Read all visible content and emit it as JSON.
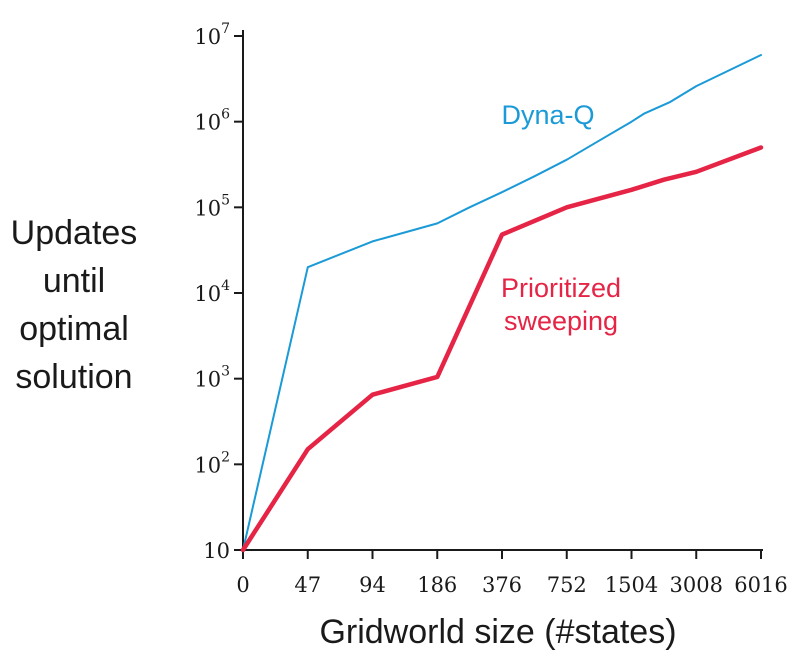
{
  "chart_data": {
    "type": "line",
    "xlabel": "Gridworld size (#states)",
    "ylabel_lines": [
      "Updates",
      "until",
      "optimal",
      "solution"
    ],
    "yscale": "log",
    "ylim": [
      10,
      10000000
    ],
    "x_categories": [
      "0",
      "47",
      "94",
      "186",
      "376",
      "752",
      "1504",
      "3008",
      "6016"
    ],
    "y_ticks": [
      {
        "value": 10,
        "base": "10",
        "exp": ""
      },
      {
        "value": 100,
        "base": "10",
        "exp": "2"
      },
      {
        "value": 1000,
        "base": "10",
        "exp": "3"
      },
      {
        "value": 10000,
        "base": "10",
        "exp": "4"
      },
      {
        "value": 100000,
        "base": "10",
        "exp": "5"
      },
      {
        "value": 1000000,
        "base": "10",
        "exp": "6"
      },
      {
        "value": 10000000,
        "base": "10",
        "exp": "7"
      }
    ],
    "grid": false,
    "series": [
      {
        "name": "Dyna-Q",
        "color": "#1a9ad6",
        "points": [
          [
            0,
            10
          ],
          [
            1,
            20000
          ],
          [
            2,
            40000
          ],
          [
            3,
            65000
          ],
          [
            3.5,
            100000
          ],
          [
            4,
            150000
          ],
          [
            4.5,
            230000
          ],
          [
            5,
            360000
          ],
          [
            5.5,
            600000
          ],
          [
            6,
            1000000
          ],
          [
            6.2,
            1250000
          ],
          [
            6.6,
            1700000
          ],
          [
            7,
            2600000
          ],
          [
            8,
            6000000
          ]
        ]
      },
      {
        "name": "Prioritized sweeping",
        "label_lines": [
          "Prioritized",
          "sweeping"
        ],
        "color": "#e52446",
        "points": [
          [
            0,
            10
          ],
          [
            1,
            150
          ],
          [
            2,
            650
          ],
          [
            3,
            1050
          ],
          [
            4,
            48000
          ],
          [
            5,
            100000
          ],
          [
            6,
            160000
          ],
          [
            6.5,
            210000
          ],
          [
            7,
            260000
          ],
          [
            8,
            500000
          ]
        ]
      }
    ]
  }
}
